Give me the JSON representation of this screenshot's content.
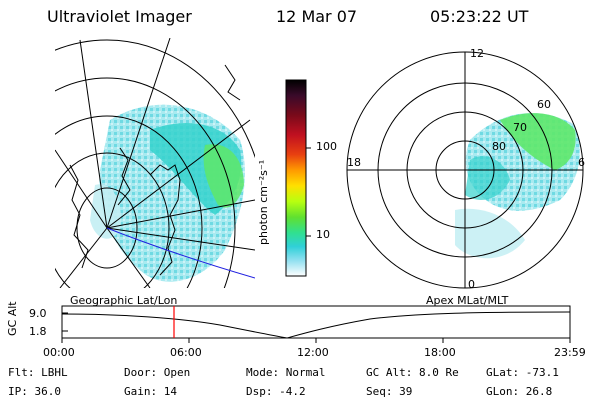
{
  "header": {
    "instrument": "Ultraviolet Imager",
    "date": "12 Mar 07",
    "time": "05:23:22 UT"
  },
  "colorbar": {
    "unit_label": "photon cm⁻²s⁻¹",
    "ticks": [
      "100",
      "10"
    ],
    "scale": "log",
    "colors": [
      "#000000",
      "#3a0a2a",
      "#7a0a1a",
      "#b01020",
      "#e03010",
      "#ff8c00",
      "#ffd000",
      "#c8ff00",
      "#70e000",
      "#30e060",
      "#30d8c0",
      "#30c8e0",
      "#80e0f0",
      "#c0f0f8",
      "#ffffff"
    ]
  },
  "polar_plot": {
    "mlt_labels": [
      "12",
      "18",
      "6",
      "0"
    ],
    "mlat_labels": [
      "60",
      "70",
      "80"
    ]
  },
  "timeline": {
    "left_label": "Geographic Lat/Lon",
    "right_label": "Apex MLat/MLT",
    "y_title": "GC Alt",
    "y_ticks": [
      "9.0",
      "1.8"
    ],
    "x_ticks": [
      "00:00",
      "06:00",
      "12:00",
      "18:00",
      "23:59"
    ],
    "marker_time": "05:23",
    "marker_color": "#ff0000"
  },
  "status": {
    "flt_label": "Flt:",
    "flt_value": "LBHL",
    "ip_label": "IP:",
    "ip_value": "36.0",
    "door_label": "Door:",
    "door_value": "Open",
    "gain_label": "Gain:",
    "gain_value": "14",
    "mode_label": "Mode:",
    "mode_value": "Normal",
    "dsp_label": "Dsp:",
    "dsp_value": "-4.2",
    "gcalt_label": "GC Alt:",
    "gcalt_value": "8.0 Re",
    "seq_label": "Seq:",
    "seq_value": "39",
    "glat_label": "GLat:",
    "glat_value": "-73.1",
    "glon_label": "GLon:",
    "glon_value": "26.8"
  }
}
